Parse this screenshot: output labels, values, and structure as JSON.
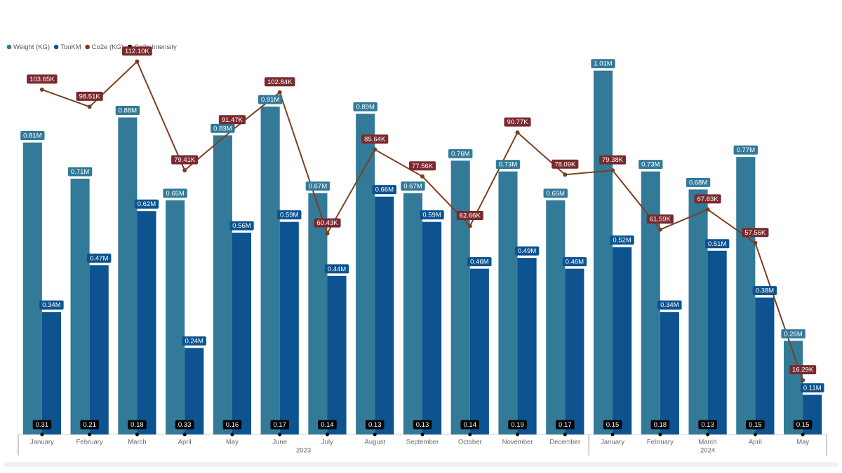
{
  "chart_data": {
    "type": "combo",
    "categories": [
      "January",
      "February",
      "March",
      "April",
      "May",
      "June",
      "July",
      "August",
      "September",
      "October",
      "November",
      "December",
      "January",
      "February",
      "March",
      "April",
      "May"
    ],
    "groups": [
      {
        "name": "2023",
        "count": 12
      },
      {
        "name": "2024",
        "count": 5
      }
    ],
    "ylim": [
      0,
      1060000
    ],
    "y2lim": [
      0,
      114800
    ],
    "series": [
      {
        "name": "Weight (KG)",
        "type": "bar",
        "color": "#337a98",
        "values": [
          810000,
          710000,
          880000,
          650000,
          830000,
          910000,
          670000,
          890000,
          670000,
          760000,
          730000,
          650000,
          1010000,
          730000,
          680000,
          770000,
          260000
        ],
        "value_labels": [
          "0.81M",
          "0.71M",
          "0.88M",
          "0.65M",
          "0.83M",
          "0.91M",
          "0.67M",
          "0.89M",
          "0.67M",
          "0.76M",
          "0.73M",
          "0.65M",
          "1.01M",
          "0.73M",
          "0.68M",
          "0.77M",
          "0.26M"
        ]
      },
      {
        "name": "TonKM",
        "type": "bar",
        "color": "#0c5390",
        "values": [
          340000,
          470000,
          620000,
          240000,
          560000,
          590000,
          440000,
          660000,
          590000,
          460000,
          490000,
          460000,
          520000,
          340000,
          510000,
          380000,
          110000
        ],
        "value_labels": [
          "0.34M",
          "0.47M",
          "0.62M",
          "0.24M",
          "0.56M",
          "0.59M",
          "0.44M",
          "0.66M",
          "0.59M",
          "0.46M",
          "0.49M",
          "0.46M",
          "0.52M",
          "0.34M",
          "0.51M",
          "0.38M",
          "0.11M"
        ]
      },
      {
        "name": "Co2e (KG)",
        "type": "line",
        "axis": "y2",
        "color": "#7b3f20",
        "label_color": "#7a2a2e",
        "values": [
          103650,
          98510,
          112100,
          79410,
          91470,
          102840,
          60430,
          85640,
          77560,
          62660,
          90770,
          78090,
          79380,
          61590,
          67630,
          57560,
          16290
        ],
        "value_labels": [
          "103.65K",
          "98.51K",
          "112.10K",
          "79.41K",
          "91.47K",
          "102.84K",
          "60.43K",
          "85.64K",
          "77.56K",
          "62.66K",
          "90.77K",
          "78.09K",
          "79.38K",
          "61.59K",
          "67.63K",
          "57.56K",
          "16.29K"
        ]
      },
      {
        "name": "Co2e Intensity",
        "type": "point",
        "color": "#000000",
        "values": [
          0.31,
          0.21,
          0.18,
          0.33,
          0.16,
          0.17,
          0.14,
          0.13,
          0.13,
          0.14,
          0.19,
          0.17,
          0.15,
          0.18,
          0.13,
          0.15,
          0.15
        ]
      }
    ]
  }
}
